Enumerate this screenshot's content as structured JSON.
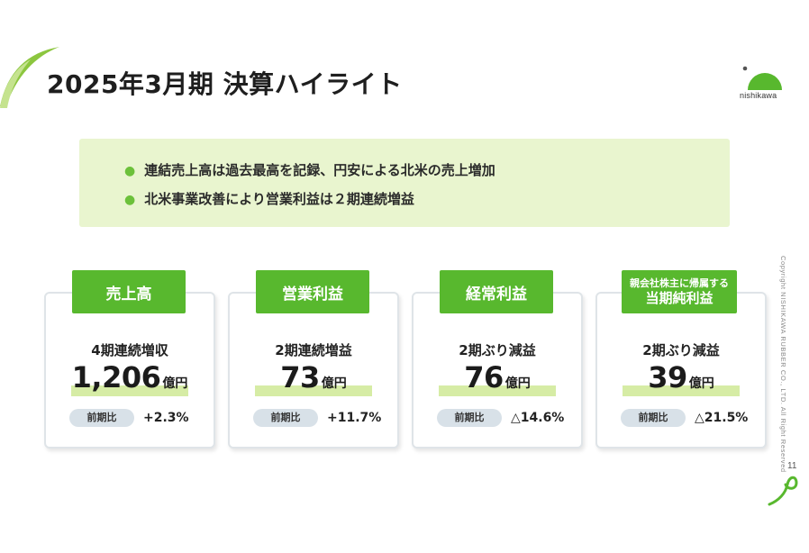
{
  "page": {
    "title": "2025年3月期 決算ハイライト",
    "page_number": "11",
    "copyright": "Copyright NISHIKAWA RUBBER CO., LTD. All Right Reserved"
  },
  "logo": {
    "text": "nishikawa",
    "color": "#58b82e"
  },
  "highlights": [
    "連結売上高は過去最高を記録、円安による北米の売上増加",
    "北米事業改善により営業利益は２期連続増益"
  ],
  "yoy_label": "前期比",
  "cards": [
    {
      "tab_label": "売上高",
      "subtitle": "4期連続増収",
      "value": "1,206",
      "unit": "億円",
      "yoy": "+2.3%"
    },
    {
      "tab_label": "営業利益",
      "subtitle": "2期連続増益",
      "value": "73",
      "unit": "億円",
      "yoy": "+11.7%"
    },
    {
      "tab_label": "経常利益",
      "subtitle": "2期ぶり減益",
      "value": "76",
      "unit": "億円",
      "yoy": "△14.6%"
    },
    {
      "tab_sublabel": "親会社株主に帰属する",
      "tab_label": "当期純利益",
      "subtitle": "2期ぶり減益",
      "value": "39",
      "unit": "億円",
      "yoy": "△21.5%"
    }
  ],
  "colors": {
    "accent_green": "#58b82e",
    "highlight_bg": "#e9f5cf",
    "value_underline": "#d6eca5",
    "pill_bg": "#d8e1e8"
  }
}
